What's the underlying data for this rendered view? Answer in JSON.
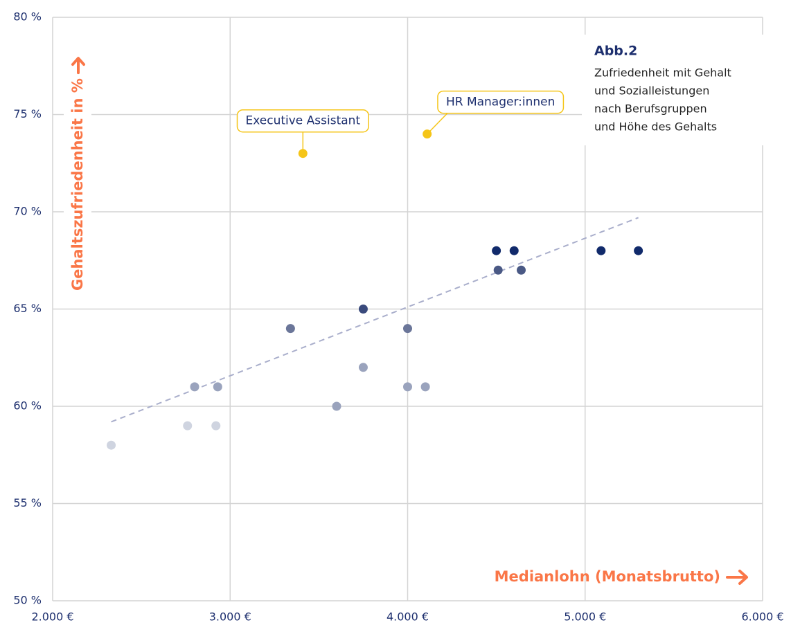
{
  "chart_data": {
    "type": "scatter",
    "title": "Abb.2",
    "subtitle": [
      "Zufriedenheit mit Gehalt",
      "und Sozialleistungen",
      "nach Berufsgruppen",
      "und Höhe des Gehalts"
    ],
    "x_label": "Medianlohn (Monatsbrutto)",
    "y_label": "Gehaltszufriedenheit in %",
    "x": [
      2330,
      2760,
      2920,
      2800,
      2930,
      3340,
      3600,
      3750,
      3750,
      4000,
      4000,
      4100,
      4500,
      4600,
      4510,
      4640,
      5090,
      5300,
      3410,
      4110
    ],
    "values": [
      58,
      59,
      59,
      61,
      61,
      64,
      60,
      65,
      62,
      64,
      61,
      61,
      68,
      68,
      67,
      67,
      68,
      68,
      73,
      74
    ],
    "colors": [
      "#cfd4e0",
      "#cfd4e0",
      "#cfd4e0",
      "#9aa3bd",
      "#9aa3bd",
      "#6b7699",
      "#9aa3bd",
      "#3a4a7c",
      "#9aa3bd",
      "#6b7699",
      "#9aa3bd",
      "#9aa3bd",
      "#112a6b",
      "#112a6b",
      "#4a5985",
      "#4a5985",
      "#112a6b",
      "#112a6b",
      "#f5c518",
      "#f5c518"
    ],
    "annotations": [
      {
        "text": "Executive Assistant",
        "point": 18
      },
      {
        "text": "HR Manager:innen",
        "point": 19
      }
    ],
    "trendline": {
      "x": [
        2330,
        5300
      ],
      "values": [
        59.2,
        69.7
      ],
      "color": "#a9aecb"
    },
    "xlim": [
      2000,
      6000
    ],
    "xticks": [
      {
        "value": 2000,
        "label": "2.000 €"
      },
      {
        "value": 3000,
        "label": "3.000 €"
      },
      {
        "value": 4000,
        "label": "4.000 €"
      },
      {
        "value": 5000,
        "label": "5.000 €"
      },
      {
        "value": 6000,
        "label": "6.000 €"
      }
    ],
    "ylim": [
      50,
      80
    ],
    "yticks": [
      {
        "value": 50,
        "label": "50 %"
      },
      {
        "value": 55,
        "label": "55 %"
      },
      {
        "value": 60,
        "label": "60 %"
      },
      {
        "value": 65,
        "label": "65 %"
      },
      {
        "value": 70,
        "label": "70 %"
      },
      {
        "value": 75,
        "label": "75 %"
      },
      {
        "value": 80,
        "label": "80 %"
      }
    ],
    "grid": true,
    "accent": "#fa7647"
  }
}
